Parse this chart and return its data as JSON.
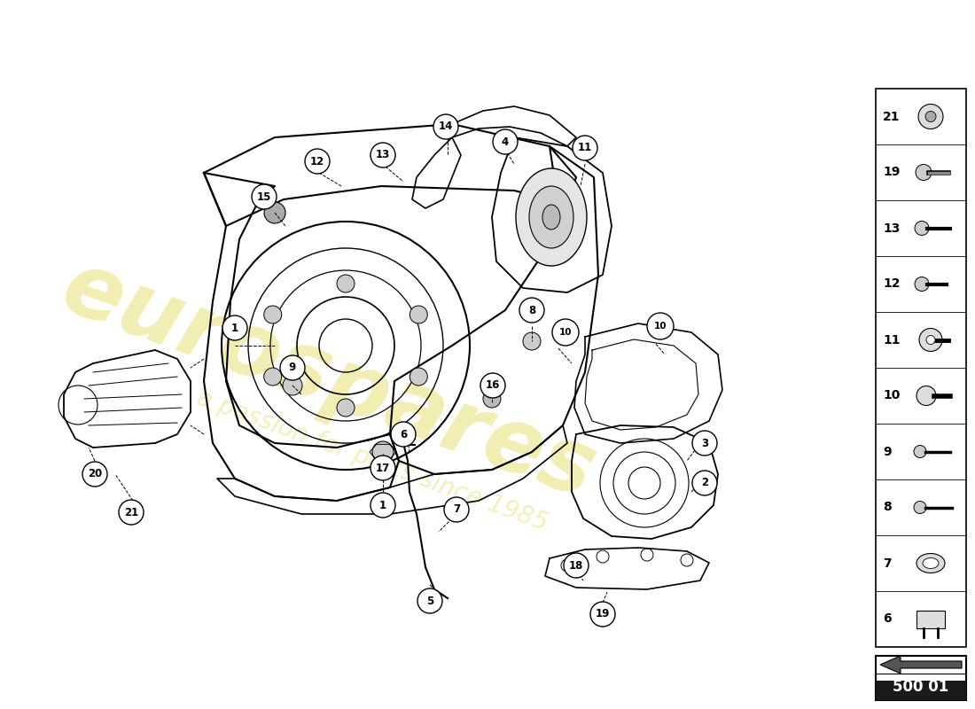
{
  "background_color": "#ffffff",
  "watermark_text": "eurospares",
  "watermark_subtext": "a passion for parts since 1985",
  "sidebar_items": [
    21,
    19,
    13,
    12,
    11,
    10,
    9,
    8,
    7,
    6
  ],
  "part_number_box": "500 01",
  "fig_width": 11.0,
  "fig_height": 8.0,
  "dpi": 100
}
